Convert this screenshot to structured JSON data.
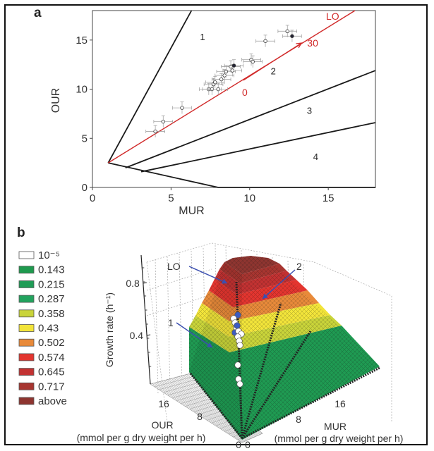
{
  "chart_data": [
    {
      "panel": "a",
      "type": "scatter",
      "title": "",
      "xlabel": "MUR",
      "ylabel": "OUR",
      "xlim": [
        0,
        18
      ],
      "ylim": [
        0,
        18
      ],
      "xticks": [
        "0",
        "5",
        "10",
        "15"
      ],
      "xtick_values": [
        0,
        5,
        10,
        15
      ],
      "yticks": [
        "0",
        "5",
        "10",
        "15"
      ],
      "ytick_values": [
        0,
        5,
        10,
        15
      ],
      "grid": false,
      "points": [
        {
          "x": 4.0,
          "y": 5.7,
          "filled": false
        },
        {
          "x": 4.5,
          "y": 6.7,
          "filled": false
        },
        {
          "x": 5.7,
          "y": 8.1,
          "filled": false
        },
        {
          "x": 7.4,
          "y": 10.0,
          "filled": false
        },
        {
          "x": 7.6,
          "y": 10.0,
          "filled": false
        },
        {
          "x": 8.0,
          "y": 10.0,
          "filled": false
        },
        {
          "x": 7.7,
          "y": 10.5,
          "filled": false
        },
        {
          "x": 7.8,
          "y": 10.7,
          "filled": false
        },
        {
          "x": 8.2,
          "y": 11.0,
          "filled": false
        },
        {
          "x": 8.4,
          "y": 11.4,
          "filled": false
        },
        {
          "x": 8.5,
          "y": 11.8,
          "filled": false
        },
        {
          "x": 8.8,
          "y": 12.3,
          "filled": false
        },
        {
          "x": 8.9,
          "y": 11.9,
          "filled": false
        },
        {
          "x": 9.0,
          "y": 12.4,
          "filled": true
        },
        {
          "x": 10.1,
          "y": 13.0,
          "filled": false
        },
        {
          "x": 10.2,
          "y": 12.8,
          "filled": false
        },
        {
          "x": 11.0,
          "y": 14.9,
          "filled": false
        },
        {
          "x": 12.4,
          "y": 15.9,
          "filled": false
        },
        {
          "x": 12.7,
          "y": 15.4,
          "filled": true
        }
      ],
      "error_bar_x": 0.6,
      "error_bar_y": 0.6,
      "phase_lines": [
        {
          "name": "boundary-1",
          "points": [
            [
              1.0,
              2.5
            ],
            [
              6.3,
              18.0
            ]
          ]
        },
        {
          "name": "boundary-2-3",
          "points": [
            [
              2.1,
              2.0
            ],
            [
              18.0,
              11.9
            ]
          ]
        },
        {
          "name": "boundary-3-4",
          "points": [
            [
              3.1,
              1.6
            ],
            [
              18.0,
              6.6
            ]
          ]
        },
        {
          "name": "boundary-4-bottom",
          "points": [
            [
              1.0,
              2.5
            ],
            [
              8.0,
              0.0
            ],
            [
              18.0,
              0.0
            ]
          ]
        }
      ],
      "lo_line": {
        "label": "LO",
        "points": [
          [
            1.0,
            2.5
          ],
          [
            16.7,
            18.0
          ]
        ],
        "color": "#d12a2a"
      },
      "arrow": {
        "start_label": "0",
        "end_label": "30",
        "from": [
          9.6,
          10.9
        ],
        "to": [
          13.3,
          14.7
        ],
        "color": "#d12a2a"
      },
      "region_labels": [
        {
          "text": "1",
          "x": 7.0,
          "y": 15.0
        },
        {
          "text": "2",
          "x": 11.5,
          "y": 11.5
        },
        {
          "text": "3",
          "x": 13.8,
          "y": 7.5
        },
        {
          "text": "4",
          "x": 14.2,
          "y": 2.8
        }
      ]
    },
    {
      "panel": "b",
      "type": "surface",
      "title": "",
      "xlabel": "MUR\n(mmol per g dry weight per h)",
      "ylabel": "OUR\n(mmol per g dry weight per h)",
      "zlabel": "Growth rate (h⁻¹)",
      "x_axis_title": "MUR",
      "x_axis_units": "(mmol per g dry weight per h)",
      "y_axis_title": "OUR",
      "y_axis_units": "(mmol per g dry weight per h)",
      "z_axis_title": "Growth rate (h⁻¹)",
      "xticks": [
        "0",
        "8",
        "16"
      ],
      "yticks": [
        "0",
        "8",
        "16"
      ],
      "zticks": [
        "0.4",
        "0.8"
      ],
      "zlim": [
        0,
        1.0
      ],
      "legend": {
        "placement": "left",
        "entries": [
          {
            "label": "10⁻⁵",
            "color": "#ffffff"
          },
          {
            "label": "0.143",
            "color": "#1e9a4e"
          },
          {
            "label": "0.215",
            "color": "#1f9c56"
          },
          {
            "label": "0.287",
            "color": "#22a35e"
          },
          {
            "label": "0.358",
            "color": "#c9d43a"
          },
          {
            "label": "0.43",
            "color": "#f2e43a"
          },
          {
            "label": "0.502",
            "color": "#e88a3a"
          },
          {
            "label": "0.574",
            "color": "#e3352f"
          },
          {
            "label": "0.645",
            "color": "#c23232"
          },
          {
            "label": "0.717",
            "color": "#a73530"
          },
          {
            "label": "above",
            "color": "#8e3530"
          }
        ]
      },
      "annotations": [
        {
          "text": "LO",
          "target": "line of optimality"
        },
        {
          "text": "1",
          "target": "phase plane region 1"
        },
        {
          "text": "2",
          "target": "phase plane region 2"
        }
      ],
      "surface_bands": [
        {
          "level_from": 0.0,
          "level_to": 0.287,
          "color": "#1f9a52"
        },
        {
          "level_from": 0.287,
          "level_to": 0.358,
          "color": "#c9d43a"
        },
        {
          "level_from": 0.358,
          "level_to": 0.43,
          "color": "#f2e43a"
        },
        {
          "level_from": 0.43,
          "level_to": 0.502,
          "color": "#e88a3a"
        },
        {
          "level_from": 0.502,
          "level_to": 0.574,
          "color": "#e3352f"
        },
        {
          "level_from": 0.574,
          "level_to": 0.645,
          "color": "#c23232"
        },
        {
          "level_from": 0.645,
          "level_to": 0.717,
          "color": "#a73530"
        },
        {
          "level_from": 0.717,
          "level_to": 0.9,
          "color": "#8e3530"
        }
      ],
      "peak_growth_rate": 0.9,
      "data_points_growth": [
        0.36,
        0.38,
        0.4,
        0.42,
        0.44,
        0.46,
        0.48,
        0.5,
        0.52,
        0.54,
        0.56,
        0.58,
        0.6,
        0.62,
        0.3,
        0.2,
        0.16
      ]
    }
  ],
  "labels": {
    "panel_a": "a",
    "panel_b": "b"
  }
}
